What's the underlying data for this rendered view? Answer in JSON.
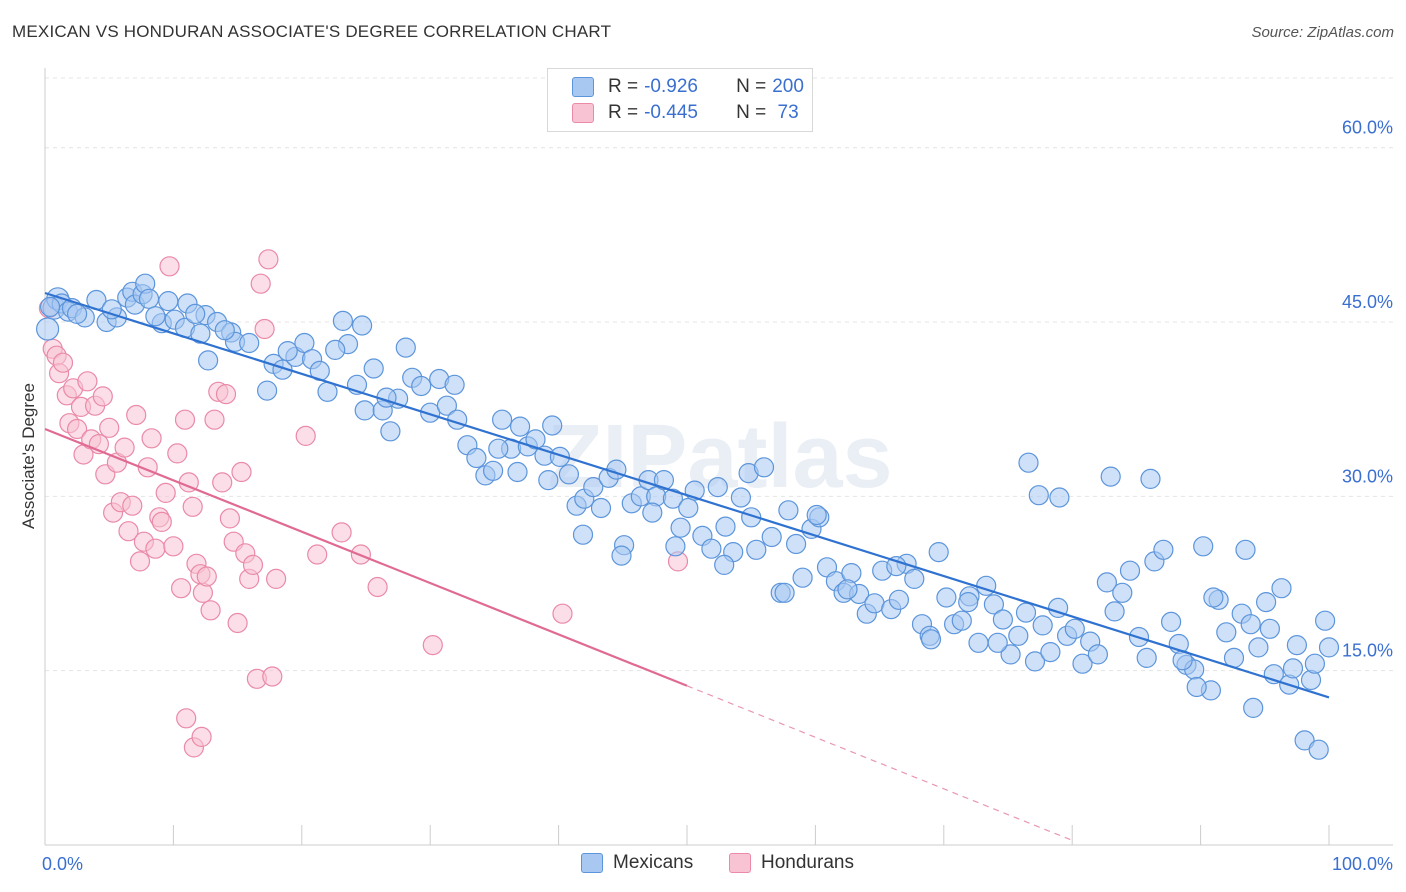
{
  "title": "MEXICAN VS HONDURAN ASSOCIATE'S DEGREE CORRELATION CHART",
  "source": "Source: ZipAtlas.com",
  "watermark": "ZIPatlas",
  "colors": {
    "blue_fill": "#a8c8f2",
    "blue_stroke": "#5c95db",
    "blue_line": "#2f72d0",
    "pink_fill": "#f8c3d3",
    "pink_stroke": "#ea8aa8",
    "pink_line": "#e06a93",
    "axis_text_blue": "#3a6fd0"
  },
  "legend": {
    "rows": [
      {
        "r_label": "R = ",
        "r_value": "-0.926",
        "n_label": "N = ",
        "n_value": "200"
      },
      {
        "r_label": "R = ",
        "r_value": "-0.445",
        "n_label": "N = ",
        "n_value": " 73"
      }
    ],
    "series": [
      "Mexicans",
      "Hondurans"
    ]
  },
  "chart_data": {
    "type": "scatter",
    "title": "MEXICAN VS HONDURAN ASSOCIATE'S DEGREE CORRELATION CHART",
    "xlabel": "",
    "ylabel": "Associate's Degree",
    "xlim": [
      0,
      100
    ],
    "ylim": [
      0,
      66
    ],
    "x_ticks": [
      "0.0%",
      "100.0%"
    ],
    "y_ticks": [
      {
        "value": 15,
        "label": "15.0%"
      },
      {
        "value": 30,
        "label": "30.0%"
      },
      {
        "value": 45,
        "label": "45.0%"
      },
      {
        "value": 60,
        "label": "60.0%"
      }
    ],
    "series": [
      {
        "name": "Mexicans",
        "R": -0.926,
        "N": 200,
        "trend": {
          "x": [
            0,
            100
          ],
          "y": [
            47.5,
            12.7
          ],
          "dashed_from": null
        },
        "points": [
          [
            0.2,
            44.4
          ],
          [
            0.7,
            46.2
          ],
          [
            1.0,
            47.0
          ],
          [
            1.3,
            46.6
          ],
          [
            1.8,
            45.9
          ],
          [
            2.1,
            46.2
          ],
          [
            3.1,
            45.4
          ],
          [
            4.0,
            46.9
          ],
          [
            4.8,
            45.0
          ],
          [
            5.6,
            45.4
          ],
          [
            6.4,
            47.1
          ],
          [
            6.8,
            47.6
          ],
          [
            7.0,
            46.5
          ],
          [
            7.6,
            47.4
          ],
          [
            7.8,
            48.3
          ],
          [
            8.1,
            47.0
          ],
          [
            9.6,
            46.8
          ],
          [
            9.1,
            44.9
          ],
          [
            10.1,
            45.2
          ],
          [
            10.9,
            44.5
          ],
          [
            11.1,
            46.6
          ],
          [
            12.1,
            44.0
          ],
          [
            12.5,
            45.6
          ],
          [
            13.4,
            45.0
          ],
          [
            12.7,
            41.7
          ],
          [
            14.5,
            44.1
          ],
          [
            14.8,
            43.3
          ],
          [
            15.9,
            43.2
          ],
          [
            17.3,
            39.1
          ],
          [
            17.8,
            41.4
          ],
          [
            18.5,
            40.9
          ],
          [
            19.5,
            42.0
          ],
          [
            20.2,
            43.2
          ],
          [
            20.8,
            41.8
          ],
          [
            21.4,
            40.8
          ],
          [
            22.0,
            39.0
          ],
          [
            23.2,
            45.1
          ],
          [
            23.6,
            43.1
          ],
          [
            24.3,
            39.6
          ],
          [
            24.9,
            37.4
          ],
          [
            25.6,
            41.0
          ],
          [
            26.3,
            37.4
          ],
          [
            26.9,
            35.6
          ],
          [
            27.5,
            38.4
          ],
          [
            28.1,
            42.8
          ],
          [
            28.6,
            40.2
          ],
          [
            29.3,
            39.5
          ],
          [
            30.0,
            37.2
          ],
          [
            30.7,
            40.1
          ],
          [
            31.3,
            37.8
          ],
          [
            32.1,
            36.6
          ],
          [
            32.9,
            34.4
          ],
          [
            33.6,
            33.3
          ],
          [
            34.3,
            31.8
          ],
          [
            34.9,
            32.2
          ],
          [
            35.6,
            36.6
          ],
          [
            36.3,
            34.1
          ],
          [
            37.0,
            36.0
          ],
          [
            37.6,
            34.3
          ],
          [
            38.2,
            34.9
          ],
          [
            38.9,
            33.5
          ],
          [
            39.5,
            36.1
          ],
          [
            40.1,
            33.4
          ],
          [
            40.8,
            31.9
          ],
          [
            41.4,
            29.2
          ],
          [
            42.0,
            29.8
          ],
          [
            42.7,
            30.8
          ],
          [
            43.3,
            29.0
          ],
          [
            43.9,
            31.6
          ],
          [
            44.5,
            32.3
          ],
          [
            45.1,
            25.8
          ],
          [
            45.7,
            29.4
          ],
          [
            46.4,
            30.0
          ],
          [
            47.0,
            31.4
          ],
          [
            47.6,
            30.0
          ],
          [
            48.2,
            31.4
          ],
          [
            48.9,
            29.8
          ],
          [
            49.5,
            27.3
          ],
          [
            50.1,
            29.0
          ],
          [
            50.6,
            30.5
          ],
          [
            51.2,
            26.6
          ],
          [
            51.9,
            25.5
          ],
          [
            52.4,
            30.8
          ],
          [
            53.0,
            27.4
          ],
          [
            53.6,
            25.2
          ],
          [
            54.2,
            29.9
          ],
          [
            54.8,
            32.0
          ],
          [
            55.4,
            25.4
          ],
          [
            56.0,
            32.5
          ],
          [
            56.6,
            26.5
          ],
          [
            57.3,
            21.7
          ],
          [
            57.9,
            28.8
          ],
          [
            58.5,
            25.9
          ],
          [
            59.0,
            23.0
          ],
          [
            59.7,
            27.2
          ],
          [
            60.3,
            28.2
          ],
          [
            60.9,
            23.9
          ],
          [
            61.6,
            22.7
          ],
          [
            62.2,
            21.7
          ],
          [
            62.8,
            23.4
          ],
          [
            63.4,
            21.6
          ],
          [
            64.0,
            19.9
          ],
          [
            64.6,
            20.8
          ],
          [
            65.2,
            23.6
          ],
          [
            65.9,
            20.3
          ],
          [
            66.5,
            21.1
          ],
          [
            67.1,
            24.2
          ],
          [
            67.7,
            22.9
          ],
          [
            68.3,
            19.0
          ],
          [
            68.9,
            18.0
          ],
          [
            69.6,
            25.2
          ],
          [
            70.2,
            21.3
          ],
          [
            70.8,
            19.0
          ],
          [
            71.4,
            19.3
          ],
          [
            72.0,
            21.4
          ],
          [
            72.7,
            17.4
          ],
          [
            73.3,
            22.3
          ],
          [
            73.9,
            20.7
          ],
          [
            74.6,
            19.4
          ],
          [
            75.2,
            16.4
          ],
          [
            75.8,
            18.0
          ],
          [
            76.4,
            20.0
          ],
          [
            77.1,
            15.8
          ],
          [
            77.7,
            18.9
          ],
          [
            78.3,
            16.6
          ],
          [
            78.9,
            20.4
          ],
          [
            79.6,
            18.0
          ],
          [
            80.2,
            18.6
          ],
          [
            80.8,
            15.6
          ],
          [
            81.4,
            17.5
          ],
          [
            82.0,
            16.4
          ],
          [
            82.7,
            22.6
          ],
          [
            83.3,
            20.1
          ],
          [
            83.9,
            21.7
          ],
          [
            84.5,
            23.6
          ],
          [
            85.2,
            17.9
          ],
          [
            85.8,
            16.1
          ],
          [
            86.4,
            24.4
          ],
          [
            87.1,
            25.4
          ],
          [
            87.7,
            19.2
          ],
          [
            88.3,
            17.3
          ],
          [
            88.9,
            15.5
          ],
          [
            89.5,
            15.1
          ],
          [
            90.2,
            25.7
          ],
          [
            90.8,
            13.3
          ],
          [
            91.4,
            21.1
          ],
          [
            92.0,
            18.3
          ],
          [
            92.6,
            16.1
          ],
          [
            93.2,
            19.9
          ],
          [
            93.9,
            19.0
          ],
          [
            94.5,
            17.0
          ],
          [
            95.1,
            20.9
          ],
          [
            95.7,
            14.7
          ],
          [
            96.3,
            22.1
          ],
          [
            96.9,
            13.8
          ],
          [
            97.5,
            17.2
          ],
          [
            98.1,
            9.0
          ],
          [
            98.6,
            14.2
          ],
          [
            99.2,
            8.2
          ],
          [
            99.7,
            19.3
          ],
          [
            100.0,
            17.0
          ],
          [
            0.4,
            46.3
          ],
          [
            2.5,
            45.7
          ],
          [
            5.2,
            46.1
          ],
          [
            8.6,
            45.5
          ],
          [
            11.7,
            45.7
          ],
          [
            14.0,
            44.3
          ],
          [
            18.9,
            42.5
          ],
          [
            22.6,
            42.6
          ],
          [
            24.7,
            44.7
          ],
          [
            26.6,
            38.5
          ],
          [
            31.9,
            39.6
          ],
          [
            35.3,
            34.1
          ],
          [
            36.8,
            32.1
          ],
          [
            39.2,
            31.4
          ],
          [
            41.9,
            26.7
          ],
          [
            44.9,
            24.9
          ],
          [
            47.3,
            28.6
          ],
          [
            49.1,
            25.7
          ],
          [
            52.9,
            24.1
          ],
          [
            55.0,
            28.2
          ],
          [
            57.6,
            21.7
          ],
          [
            60.1,
            28.4
          ],
          [
            62.5,
            22.0
          ],
          [
            66.3,
            24.0
          ],
          [
            69.0,
            17.7
          ],
          [
            71.9,
            20.9
          ],
          [
            74.2,
            17.4
          ],
          [
            76.6,
            32.9
          ],
          [
            77.4,
            30.1
          ],
          [
            79.0,
            29.9
          ],
          [
            83.0,
            31.7
          ],
          [
            86.1,
            31.5
          ],
          [
            88.6,
            15.9
          ],
          [
            91.0,
            21.3
          ],
          [
            93.5,
            25.4
          ],
          [
            95.4,
            18.6
          ],
          [
            97.2,
            15.2
          ],
          [
            98.9,
            15.6
          ],
          [
            94.1,
            11.8
          ],
          [
            89.7,
            13.6
          ]
        ]
      },
      {
        "name": "Hondurans",
        "R": -0.445,
        "N": 73,
        "trend": {
          "x": [
            0,
            50,
            80
          ],
          "y": [
            35.8,
            13.7,
            0.4
          ],
          "dashed_from": 50
        },
        "points": [
          [
            0.3,
            46.2
          ],
          [
            0.6,
            42.7
          ],
          [
            0.9,
            42.1
          ],
          [
            1.1,
            40.6
          ],
          [
            1.4,
            41.5
          ],
          [
            1.7,
            38.7
          ],
          [
            1.9,
            36.3
          ],
          [
            2.2,
            39.3
          ],
          [
            2.5,
            35.8
          ],
          [
            2.8,
            37.7
          ],
          [
            3.0,
            33.6
          ],
          [
            3.3,
            39.9
          ],
          [
            3.6,
            34.9
          ],
          [
            3.9,
            37.8
          ],
          [
            4.2,
            34.5
          ],
          [
            4.5,
            38.6
          ],
          [
            4.7,
            31.9
          ],
          [
            5.0,
            35.9
          ],
          [
            5.3,
            28.6
          ],
          [
            5.6,
            32.9
          ],
          [
            5.9,
            29.5
          ],
          [
            6.2,
            34.2
          ],
          [
            6.5,
            27.0
          ],
          [
            6.8,
            29.2
          ],
          [
            7.1,
            37.0
          ],
          [
            7.4,
            24.4
          ],
          [
            7.7,
            26.1
          ],
          [
            8.0,
            32.5
          ],
          [
            8.3,
            35.0
          ],
          [
            8.6,
            25.5
          ],
          [
            8.9,
            28.2
          ],
          [
            9.1,
            27.8
          ],
          [
            9.4,
            30.3
          ],
          [
            9.7,
            49.8
          ],
          [
            10.0,
            25.7
          ],
          [
            10.3,
            33.7
          ],
          [
            10.6,
            22.1
          ],
          [
            10.9,
            36.6
          ],
          [
            11.2,
            31.2
          ],
          [
            11.5,
            29.1
          ],
          [
            11.8,
            24.2
          ],
          [
            12.1,
            23.3
          ],
          [
            12.3,
            21.7
          ],
          [
            12.6,
            23.1
          ],
          [
            12.9,
            20.2
          ],
          [
            13.2,
            36.6
          ],
          [
            13.5,
            39.0
          ],
          [
            13.8,
            31.2
          ],
          [
            14.1,
            38.8
          ],
          [
            14.4,
            28.1
          ],
          [
            14.7,
            26.1
          ],
          [
            15.0,
            19.1
          ],
          [
            15.3,
            32.1
          ],
          [
            15.6,
            25.1
          ],
          [
            15.9,
            22.9
          ],
          [
            16.2,
            24.1
          ],
          [
            16.5,
            14.3
          ],
          [
            16.8,
            48.3
          ],
          [
            17.1,
            44.4
          ],
          [
            17.4,
            50.4
          ],
          [
            17.7,
            14.5
          ],
          [
            18.0,
            22.9
          ],
          [
            20.3,
            35.2
          ],
          [
            21.2,
            25.0
          ],
          [
            23.1,
            26.9
          ],
          [
            24.6,
            25.0
          ],
          [
            25.9,
            22.2
          ],
          [
            30.2,
            17.2
          ],
          [
            40.3,
            19.9
          ],
          [
            49.3,
            24.4
          ],
          [
            11.0,
            10.9
          ],
          [
            11.6,
            8.4
          ],
          [
            12.2,
            9.3
          ]
        ]
      }
    ]
  }
}
